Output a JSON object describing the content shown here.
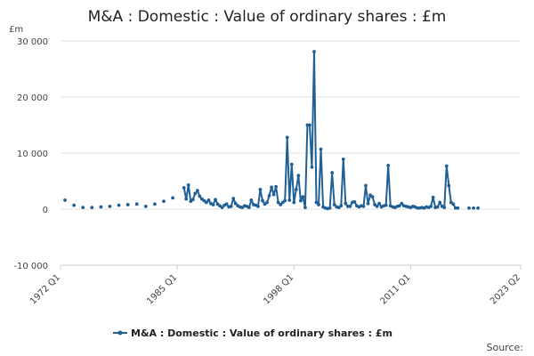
{
  "chart_data": {
    "type": "line",
    "title": "M&A : Domestic : Value of ordinary shares : £m",
    "unit_label": "£m",
    "ylim": [
      -10000,
      30000
    ],
    "yticks": [
      30000,
      20000,
      10000,
      0,
      -10000
    ],
    "ytick_labels": [
      "30 000",
      "20 000",
      "10 000",
      "0",
      "-10 000"
    ],
    "xlim": [
      1972.0,
      2023.25
    ],
    "xticks": [
      {
        "value": 1972.0,
        "label": "1972 Q1"
      },
      {
        "value": 1985.0,
        "label": "1985 Q1"
      },
      {
        "value": 1998.0,
        "label": "1998 Q1"
      },
      {
        "value": 2011.0,
        "label": "2011 Q1"
      },
      {
        "value": 2023.25,
        "label": "2023 Q2"
      }
    ],
    "grid": true,
    "legend_position": "bottom",
    "source_label": "Source:",
    "color": "#206095",
    "series": [
      {
        "name": "M&A : Domestic : Value of ordinary shares : £m",
        "annual_points": [
          [
            1972.5,
            1600
          ],
          [
            1973.5,
            700
          ],
          [
            1974.5,
            300
          ],
          [
            1975.5,
            300
          ],
          [
            1976.5,
            400
          ],
          [
            1977.5,
            500
          ],
          [
            1978.5,
            700
          ],
          [
            1979.5,
            800
          ],
          [
            1980.5,
            900
          ],
          [
            1981.5,
            500
          ],
          [
            1982.5,
            900
          ],
          [
            1983.5,
            1400
          ],
          [
            1984.5,
            2000
          ]
        ],
        "quarterly_points": [
          [
            1985.75,
            3800
          ],
          [
            1986.0,
            1800
          ],
          [
            1986.25,
            4300
          ],
          [
            1986.5,
            1400
          ],
          [
            1986.75,
            1700
          ],
          [
            1987.0,
            2800
          ],
          [
            1987.25,
            3300
          ],
          [
            1987.5,
            2300
          ],
          [
            1987.75,
            1800
          ],
          [
            1988.0,
            1500
          ],
          [
            1988.25,
            1200
          ],
          [
            1988.5,
            1600
          ],
          [
            1988.75,
            1000
          ],
          [
            1989.0,
            800
          ],
          [
            1989.25,
            1700
          ],
          [
            1989.5,
            900
          ],
          [
            1989.75,
            600
          ],
          [
            1990.0,
            300
          ],
          [
            1990.25,
            700
          ],
          [
            1990.5,
            900
          ],
          [
            1990.75,
            400
          ],
          [
            1991.0,
            500
          ],
          [
            1991.25,
            1900
          ],
          [
            1991.5,
            1000
          ],
          [
            1991.75,
            600
          ],
          [
            1992.0,
            400
          ],
          [
            1992.25,
            300
          ],
          [
            1992.5,
            600
          ],
          [
            1992.75,
            500
          ],
          [
            1993.0,
            300
          ],
          [
            1993.25,
            1600
          ],
          [
            1993.5,
            800
          ],
          [
            1993.75,
            700
          ],
          [
            1994.0,
            500
          ],
          [
            1994.25,
            3500
          ],
          [
            1994.5,
            1500
          ],
          [
            1994.75,
            900
          ],
          [
            1995.0,
            1200
          ],
          [
            1995.25,
            2400
          ],
          [
            1995.5,
            3900
          ],
          [
            1995.75,
            2600
          ],
          [
            1996.0,
            4000
          ],
          [
            1996.25,
            1200
          ],
          [
            1996.5,
            800
          ],
          [
            1996.75,
            1200
          ],
          [
            1997.0,
            1500
          ],
          [
            1997.25,
            12800
          ],
          [
            1997.5,
            1600
          ],
          [
            1997.75,
            8000
          ],
          [
            1998.0,
            1200
          ],
          [
            1998.25,
            3500
          ],
          [
            1998.5,
            6000
          ],
          [
            1998.75,
            1500
          ],
          [
            1999.0,
            2200
          ],
          [
            1999.25,
            300
          ],
          [
            1999.5,
            15000
          ],
          [
            1999.75,
            15000
          ],
          [
            2000.0,
            7500
          ],
          [
            2000.25,
            28100
          ],
          [
            2000.5,
            1200
          ],
          [
            2000.75,
            800
          ],
          [
            2001.0,
            10700
          ],
          [
            2001.25,
            400
          ],
          [
            2001.5,
            200
          ],
          [
            2001.75,
            100
          ],
          [
            2002.0,
            200
          ],
          [
            2002.25,
            6500
          ],
          [
            2002.5,
            800
          ],
          [
            2002.75,
            400
          ],
          [
            2003.0,
            300
          ],
          [
            2003.25,
            600
          ],
          [
            2003.5,
            8900
          ],
          [
            2003.75,
            1000
          ],
          [
            2004.0,
            500
          ],
          [
            2004.25,
            500
          ],
          [
            2004.5,
            1200
          ],
          [
            2004.75,
            1300
          ],
          [
            2005.0,
            600
          ],
          [
            2005.25,
            400
          ],
          [
            2005.5,
            600
          ],
          [
            2005.75,
            500
          ],
          [
            2006.0,
            4200
          ],
          [
            2006.25,
            1000
          ],
          [
            2006.5,
            2500
          ],
          [
            2006.75,
            2200
          ],
          [
            2007.0,
            800
          ],
          [
            2007.25,
            500
          ],
          [
            2007.5,
            1000
          ],
          [
            2007.75,
            400
          ],
          [
            2008.0,
            600
          ],
          [
            2008.25,
            700
          ],
          [
            2008.5,
            7800
          ],
          [
            2008.75,
            600
          ],
          [
            2009.0,
            400
          ],
          [
            2009.25,
            300
          ],
          [
            2009.5,
            500
          ],
          [
            2009.75,
            600
          ],
          [
            2010.0,
            1000
          ],
          [
            2010.25,
            600
          ],
          [
            2010.5,
            500
          ],
          [
            2010.75,
            400
          ],
          [
            2011.0,
            300
          ],
          [
            2011.25,
            500
          ],
          [
            2011.5,
            400
          ],
          [
            2011.75,
            200
          ],
          [
            2012.0,
            200
          ],
          [
            2012.25,
            300
          ],
          [
            2012.5,
            200
          ],
          [
            2012.75,
            400
          ],
          [
            2013.0,
            300
          ],
          [
            2013.25,
            500
          ],
          [
            2013.5,
            2100
          ],
          [
            2013.75,
            300
          ],
          [
            2014.0,
            400
          ],
          [
            2014.25,
            1200
          ],
          [
            2014.5,
            500
          ],
          [
            2014.75,
            300
          ],
          [
            2015.0,
            7700
          ],
          [
            2015.25,
            4200
          ],
          [
            2015.5,
            1200
          ],
          [
            2015.75,
            900
          ],
          [
            2016.0,
            200
          ],
          [
            2016.25,
            200
          ]
        ],
        "trailing_points": [
          [
            2017.5,
            200
          ],
          [
            2018.0,
            200
          ],
          [
            2018.5,
            200
          ]
        ]
      }
    ]
  }
}
